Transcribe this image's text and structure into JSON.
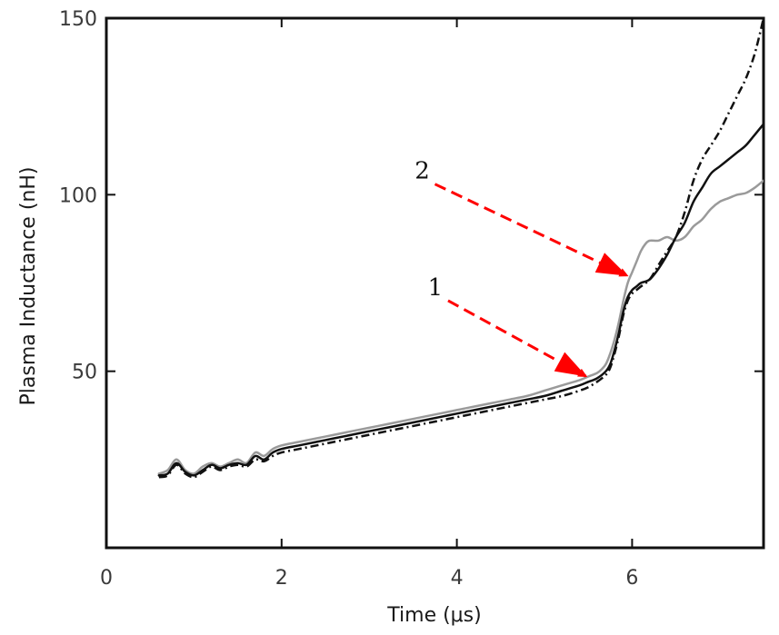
{
  "chart_data": {
    "type": "line",
    "title": "",
    "xlabel": "Time (μs)",
    "ylabel": "Plasma Inductance (nH)",
    "xlim": [
      0,
      7.5
    ],
    "ylim": [
      0,
      150
    ],
    "xticks": [
      0,
      2,
      4,
      6
    ],
    "xtick_labels": [
      "0",
      "2",
      "4",
      "6"
    ],
    "yticks": [
      50,
      100,
      150
    ],
    "ytick_labels": [
      "50",
      "100",
      "150"
    ],
    "grid": false,
    "series": [
      {
        "name": "gray solid",
        "color": "#9a9a9a",
        "style": "solid",
        "x": [
          0.6,
          0.7,
          0.8,
          0.9,
          1.0,
          1.1,
          1.2,
          1.3,
          1.4,
          1.5,
          1.6,
          1.7,
          1.8,
          1.9,
          2.0,
          2.2,
          2.4,
          2.6,
          2.8,
          3.0,
          3.2,
          3.4,
          3.6,
          3.8,
          4.0,
          4.2,
          4.4,
          4.6,
          4.8,
          5.0,
          5.2,
          5.4,
          5.5,
          5.6,
          5.65,
          5.7,
          5.75,
          5.8,
          5.85,
          5.9,
          5.95,
          6.0,
          6.05,
          6.1,
          6.15,
          6.2,
          6.3,
          6.4,
          6.5,
          6.6,
          6.7,
          6.8,
          6.9,
          7.0,
          7.1,
          7.2,
          7.3,
          7.4,
          7.5
        ],
        "values": [
          21,
          22,
          25,
          22,
          21,
          23,
          24,
          23,
          24,
          25,
          24,
          27,
          26,
          28,
          29,
          30,
          31,
          32,
          33,
          34,
          35,
          36,
          37,
          38,
          39,
          40,
          41,
          42,
          43,
          44.5,
          46,
          47.5,
          48.5,
          49.5,
          50.5,
          52,
          55,
          59,
          64,
          70,
          75,
          78,
          81,
          84,
          86,
          87,
          87,
          88,
          87,
          88,
          91,
          93,
          96,
          98,
          99,
          100,
          100.5,
          102,
          104
        ]
      },
      {
        "name": "black solid",
        "color": "#111111",
        "style": "solid",
        "x": [
          0.6,
          0.7,
          0.8,
          0.9,
          1.0,
          1.1,
          1.2,
          1.3,
          1.4,
          1.5,
          1.6,
          1.7,
          1.8,
          1.9,
          2.0,
          2.2,
          2.4,
          2.6,
          2.8,
          3.0,
          3.2,
          3.4,
          3.6,
          3.8,
          4.0,
          4.2,
          4.4,
          4.6,
          4.8,
          5.0,
          5.2,
          5.4,
          5.5,
          5.6,
          5.7,
          5.75,
          5.8,
          5.85,
          5.9,
          5.95,
          6.0,
          6.05,
          6.1,
          6.2,
          6.3,
          6.4,
          6.5,
          6.6,
          6.7,
          6.8,
          6.9,
          7.0,
          7.1,
          7.2,
          7.3,
          7.4,
          7.5
        ],
        "values": [
          20.5,
          21,
          24,
          21.5,
          20.5,
          22,
          23.5,
          22.5,
          23.5,
          24,
          23.5,
          26,
          25,
          27,
          28,
          29,
          30,
          31,
          32,
          33,
          34,
          35,
          36,
          37,
          38,
          39,
          40,
          41,
          42,
          43,
          44.5,
          46,
          47,
          48,
          50,
          52,
          56,
          61,
          67,
          71,
          73,
          74,
          75,
          76,
          79,
          83,
          88,
          92,
          98,
          102,
          106,
          108,
          110,
          112,
          114,
          117,
          120
        ]
      },
      {
        "name": "black dash-dot",
        "color": "#111111",
        "style": "dashdot",
        "x": [
          0.6,
          0.7,
          0.8,
          0.9,
          1.0,
          1.1,
          1.2,
          1.3,
          1.4,
          1.5,
          1.6,
          1.7,
          1.8,
          1.9,
          2.0,
          2.2,
          2.4,
          2.6,
          2.8,
          3.0,
          3.2,
          3.4,
          3.6,
          3.8,
          4.0,
          4.2,
          4.4,
          4.6,
          4.8,
          5.0,
          5.2,
          5.4,
          5.5,
          5.6,
          5.7,
          5.75,
          5.8,
          5.85,
          5.9,
          5.95,
          6.0,
          6.05,
          6.1,
          6.2,
          6.3,
          6.4,
          6.5,
          6.6,
          6.7,
          6.8,
          6.9,
          7.0,
          7.1,
          7.2,
          7.3,
          7.4,
          7.5
        ],
        "values": [
          20,
          20.5,
          23.5,
          21,
          20,
          21.5,
          23,
          22,
          23,
          23.5,
          23,
          25,
          24.5,
          26,
          27,
          28,
          29,
          30,
          31,
          32,
          33,
          34,
          35,
          36,
          37,
          38,
          39,
          40,
          41,
          42,
          43,
          44.5,
          45.5,
          47,
          49,
          51,
          55,
          60,
          66,
          70,
          72,
          73,
          74,
          76,
          80,
          84,
          88,
          95,
          104,
          110,
          114,
          118,
          123,
          128,
          133,
          140,
          150
        ]
      }
    ],
    "annotations": [
      {
        "label": "1",
        "from": [
          3.9,
          70
        ],
        "to": [
          5.48,
          48.5
        ],
        "color": "#ff0000",
        "style": "dashed-arrow"
      },
      {
        "label": "2",
        "from": [
          3.75,
          103
        ],
        "to": [
          5.95,
          77
        ],
        "color": "#ff0000",
        "style": "dashed-arrow"
      }
    ]
  }
}
